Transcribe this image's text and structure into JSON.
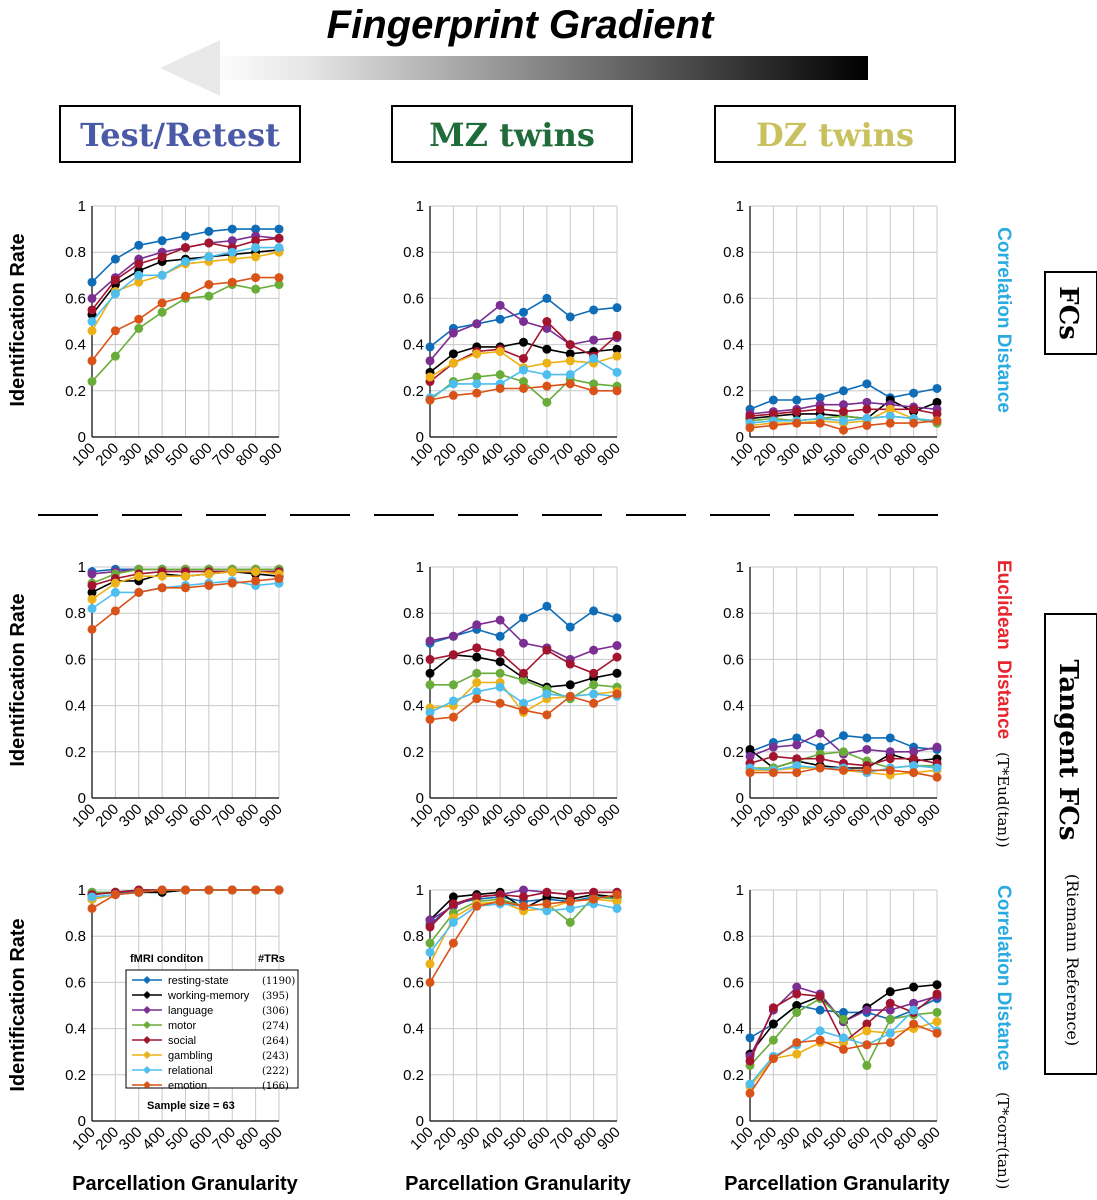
{
  "figure": {
    "title": "Fingerprint Gradient",
    "columns": [
      {
        "label": "Test/Retest",
        "color": "#4b5aa6"
      },
      {
        "label": "MZ twins",
        "color": "#1f6b3a"
      },
      {
        "label": "DZ twins",
        "color": "#c8c15e"
      }
    ],
    "row_labels": {
      "fc_box": "FCs",
      "tangent_box": "Tangent FCs",
      "riemann": "(Riemann Reference)",
      "corr_distance": "Correlation Distance",
      "eucl_word1": "Euclidean",
      "eucl_word2": "Distance",
      "eucl_formula": "(T*Eud(tan))",
      "corr2_formula": "(T*corr(tan))"
    },
    "y_axis_label": "Identification Rate",
    "x_axis_label": "Parcellation Granularity",
    "colors": {
      "corr_blue": "#29abe2",
      "eucl_red": "#e8262d",
      "arrow_dark": "#000000"
    }
  },
  "chart_data": {
    "type": "line",
    "x": [
      100,
      200,
      300,
      400,
      500,
      600,
      700,
      800,
      900
    ],
    "ylim": [
      0,
      1
    ],
    "yticks": [
      "0",
      "0.2",
      "0.4",
      "0.6",
      "0.8",
      "1"
    ],
    "legend": {
      "title": "fMRI conditon",
      "trs_header": "#TRs",
      "sample_size": "Sample size = 63",
      "entries": [
        {
          "name": "resting-state",
          "trs": "(1190)",
          "color": "#0f6db8"
        },
        {
          "name": "working-memory",
          "trs": "(395)",
          "color": "#000000"
        },
        {
          "name": "language",
          "trs": "(306)",
          "color": "#7b2f93"
        },
        {
          "name": "motor",
          "trs": "(274)",
          "color": "#6aac3a"
        },
        {
          "name": "social",
          "trs": "(264)",
          "color": "#a3142f"
        },
        {
          "name": "gambling",
          "trs": "(243)",
          "color": "#edb118"
        },
        {
          "name": "relational",
          "trs": "(222)",
          "color": "#4dbeee"
        },
        {
          "name": "emotion",
          "trs": "(166)",
          "color": "#d95319"
        }
      ]
    },
    "panels": [
      {
        "row": 0,
        "col": 0,
        "series": [
          [
            0.67,
            0.77,
            0.83,
            0.85,
            0.87,
            0.89,
            0.9,
            0.9,
            0.9
          ],
          [
            0.53,
            0.66,
            0.72,
            0.76,
            0.77,
            0.78,
            0.79,
            0.8,
            0.81
          ],
          [
            0.6,
            0.69,
            0.77,
            0.8,
            0.82,
            0.84,
            0.85,
            0.87,
            0.86
          ],
          [
            0.24,
            0.35,
            0.47,
            0.54,
            0.6,
            0.61,
            0.66,
            0.64,
            0.66
          ],
          [
            0.55,
            0.68,
            0.75,
            0.78,
            0.82,
            0.84,
            0.82,
            0.85,
            0.86
          ],
          [
            0.46,
            0.63,
            0.67,
            0.7,
            0.75,
            0.76,
            0.77,
            0.78,
            0.8
          ],
          [
            0.5,
            0.62,
            0.7,
            0.7,
            0.76,
            0.78,
            0.8,
            0.82,
            0.82
          ],
          [
            0.33,
            0.46,
            0.51,
            0.58,
            0.61,
            0.66,
            0.67,
            0.69,
            0.69
          ]
        ]
      },
      {
        "row": 0,
        "col": 1,
        "series": [
          [
            0.39,
            0.47,
            0.49,
            0.51,
            0.54,
            0.6,
            0.52,
            0.55,
            0.56
          ],
          [
            0.28,
            0.36,
            0.39,
            0.39,
            0.41,
            0.38,
            0.36,
            0.37,
            0.38
          ],
          [
            0.33,
            0.45,
            0.49,
            0.57,
            0.5,
            0.47,
            0.4,
            0.42,
            0.43
          ],
          [
            0.16,
            0.24,
            0.26,
            0.27,
            0.24,
            0.15,
            0.25,
            0.23,
            0.22
          ],
          [
            0.24,
            0.32,
            0.37,
            0.38,
            0.34,
            0.5,
            0.4,
            0.35,
            0.44
          ],
          [
            0.26,
            0.32,
            0.36,
            0.37,
            0.3,
            0.32,
            0.33,
            0.32,
            0.35
          ],
          [
            0.17,
            0.23,
            0.23,
            0.23,
            0.29,
            0.27,
            0.27,
            0.34,
            0.28
          ],
          [
            0.16,
            0.18,
            0.19,
            0.21,
            0.21,
            0.22,
            0.23,
            0.2,
            0.2
          ]
        ]
      },
      {
        "row": 0,
        "col": 2,
        "series": [
          [
            0.12,
            0.16,
            0.16,
            0.17,
            0.2,
            0.23,
            0.17,
            0.19,
            0.21
          ],
          [
            0.08,
            0.09,
            0.1,
            0.1,
            0.09,
            0.08,
            0.16,
            0.11,
            0.15
          ],
          [
            0.1,
            0.11,
            0.12,
            0.14,
            0.14,
            0.15,
            0.14,
            0.13,
            0.12
          ],
          [
            0.07,
            0.08,
            0.07,
            0.08,
            0.09,
            0.08,
            0.09,
            0.08,
            0.06
          ],
          [
            0.09,
            0.1,
            0.11,
            0.12,
            0.11,
            0.12,
            0.12,
            0.12,
            0.1
          ],
          [
            0.05,
            0.06,
            0.06,
            0.07,
            0.06,
            0.07,
            0.12,
            0.08,
            0.07
          ],
          [
            0.06,
            0.07,
            0.07,
            0.08,
            0.07,
            0.08,
            0.09,
            0.08,
            0.07
          ],
          [
            0.04,
            0.05,
            0.06,
            0.06,
            0.03,
            0.05,
            0.06,
            0.06,
            0.07
          ]
        ]
      },
      {
        "row": 1,
        "col": 0,
        "series": [
          [
            0.98,
            0.99,
            0.99,
            0.99,
            0.99,
            0.99,
            0.99,
            0.99,
            0.99
          ],
          [
            0.89,
            0.94,
            0.94,
            0.97,
            0.96,
            0.97,
            0.98,
            0.97,
            0.96
          ],
          [
            0.97,
            0.98,
            0.99,
            0.99,
            0.99,
            0.99,
            0.99,
            0.99,
            0.99
          ],
          [
            0.93,
            0.97,
            0.99,
            0.99,
            0.99,
            0.99,
            0.99,
            0.99,
            0.99
          ],
          [
            0.92,
            0.95,
            0.97,
            0.98,
            0.98,
            0.98,
            0.98,
            0.98,
            0.98
          ],
          [
            0.86,
            0.93,
            0.96,
            0.96,
            0.96,
            0.97,
            0.98,
            0.98,
            0.97
          ],
          [
            0.82,
            0.89,
            0.89,
            0.91,
            0.92,
            0.93,
            0.94,
            0.92,
            0.93
          ],
          [
            0.73,
            0.81,
            0.89,
            0.91,
            0.91,
            0.92,
            0.93,
            0.94,
            0.95
          ]
        ]
      },
      {
        "row": 1,
        "col": 1,
        "series": [
          [
            0.67,
            0.7,
            0.73,
            0.7,
            0.78,
            0.83,
            0.74,
            0.81,
            0.78
          ],
          [
            0.54,
            0.62,
            0.61,
            0.59,
            0.52,
            0.48,
            0.49,
            0.52,
            0.54
          ],
          [
            0.68,
            0.7,
            0.75,
            0.77,
            0.67,
            0.65,
            0.6,
            0.64,
            0.66
          ],
          [
            0.49,
            0.49,
            0.54,
            0.54,
            0.51,
            0.47,
            0.43,
            0.49,
            0.48
          ],
          [
            0.6,
            0.62,
            0.65,
            0.63,
            0.54,
            0.64,
            0.58,
            0.54,
            0.61
          ],
          [
            0.39,
            0.4,
            0.5,
            0.5,
            0.37,
            0.43,
            0.44,
            0.45,
            0.46
          ],
          [
            0.37,
            0.42,
            0.46,
            0.48,
            0.41,
            0.45,
            0.44,
            0.45,
            0.44
          ],
          [
            0.34,
            0.35,
            0.43,
            0.41,
            0.38,
            0.36,
            0.44,
            0.41,
            0.45
          ]
        ]
      },
      {
        "row": 1,
        "col": 2,
        "series": [
          [
            0.2,
            0.24,
            0.26,
            0.22,
            0.27,
            0.26,
            0.26,
            0.22,
            0.21
          ],
          [
            0.21,
            0.13,
            0.16,
            0.14,
            0.13,
            0.13,
            0.19,
            0.16,
            0.17
          ],
          [
            0.18,
            0.22,
            0.23,
            0.28,
            0.19,
            0.21,
            0.2,
            0.2,
            0.22
          ],
          [
            0.13,
            0.13,
            0.16,
            0.19,
            0.2,
            0.16,
            0.13,
            0.14,
            0.14
          ],
          [
            0.15,
            0.18,
            0.17,
            0.17,
            0.15,
            0.14,
            0.17,
            0.17,
            0.15
          ],
          [
            0.12,
            0.12,
            0.13,
            0.13,
            0.12,
            0.11,
            0.1,
            0.11,
            0.12
          ],
          [
            0.13,
            0.12,
            0.14,
            0.13,
            0.13,
            0.11,
            0.13,
            0.14,
            0.13
          ],
          [
            0.11,
            0.11,
            0.11,
            0.13,
            0.12,
            0.12,
            0.12,
            0.11,
            0.09
          ]
        ]
      },
      {
        "row": 2,
        "col": 0,
        "series": [
          [
            0.98,
            0.99,
            0.99,
            0.99,
            1.0,
            1.0,
            1.0,
            1.0,
            1.0
          ],
          [
            0.96,
            0.98,
            0.99,
            0.99,
            1.0,
            1.0,
            1.0,
            1.0,
            1.0
          ],
          [
            0.99,
            0.99,
            1.0,
            1.0,
            1.0,
            1.0,
            1.0,
            1.0,
            1.0
          ],
          [
            0.99,
            0.99,
            1.0,
            1.0,
            1.0,
            1.0,
            1.0,
            1.0,
            1.0
          ],
          [
            0.98,
            0.99,
            1.0,
            1.0,
            1.0,
            1.0,
            1.0,
            1.0,
            1.0
          ],
          [
            0.96,
            0.98,
            0.99,
            1.0,
            1.0,
            1.0,
            1.0,
            1.0,
            1.0
          ],
          [
            0.97,
            0.98,
            0.99,
            1.0,
            1.0,
            1.0,
            1.0,
            1.0,
            1.0
          ],
          [
            0.92,
            0.98,
            0.99,
            1.0,
            1.0,
            1.0,
            1.0,
            1.0,
            1.0
          ]
        ]
      },
      {
        "row": 2,
        "col": 1,
        "series": [
          [
            0.85,
            0.94,
            0.96,
            0.97,
            0.95,
            0.96,
            0.95,
            0.97,
            0.97
          ],
          [
            0.87,
            0.97,
            0.98,
            0.99,
            0.92,
            0.97,
            0.96,
            0.98,
            0.97
          ],
          [
            0.87,
            0.93,
            0.97,
            0.98,
            1.0,
            0.99,
            0.98,
            0.99,
            0.99
          ],
          [
            0.77,
            0.9,
            0.95,
            0.96,
            0.93,
            0.94,
            0.86,
            0.97,
            0.96
          ],
          [
            0.84,
            0.94,
            0.97,
            0.98,
            0.97,
            0.99,
            0.98,
            0.99,
            0.99
          ],
          [
            0.68,
            0.88,
            0.94,
            0.95,
            0.91,
            0.92,
            0.95,
            0.96,
            0.95
          ],
          [
            0.73,
            0.86,
            0.93,
            0.94,
            0.93,
            0.91,
            0.92,
            0.94,
            0.92
          ],
          [
            0.6,
            0.77,
            0.93,
            0.95,
            0.93,
            0.94,
            0.95,
            0.96,
            0.98
          ]
        ]
      },
      {
        "row": 2,
        "col": 2,
        "series": [
          [
            0.36,
            0.42,
            0.5,
            0.48,
            0.47,
            0.47,
            0.44,
            0.48,
            0.53
          ],
          [
            0.29,
            0.42,
            0.5,
            0.54,
            0.43,
            0.49,
            0.56,
            0.58,
            0.59
          ],
          [
            0.28,
            0.48,
            0.58,
            0.55,
            0.43,
            0.48,
            0.48,
            0.51,
            0.54
          ],
          [
            0.24,
            0.35,
            0.47,
            0.53,
            0.44,
            0.24,
            0.44,
            0.46,
            0.47
          ],
          [
            0.26,
            0.49,
            0.55,
            0.54,
            0.34,
            0.42,
            0.51,
            0.47,
            0.55
          ],
          [
            0.15,
            0.27,
            0.29,
            0.34,
            0.34,
            0.39,
            0.38,
            0.4,
            0.43
          ],
          [
            0.16,
            0.28,
            0.33,
            0.39,
            0.36,
            0.33,
            0.38,
            0.48,
            0.39
          ],
          [
            0.12,
            0.27,
            0.34,
            0.35,
            0.31,
            0.33,
            0.34,
            0.42,
            0.38
          ]
        ]
      }
    ]
  }
}
